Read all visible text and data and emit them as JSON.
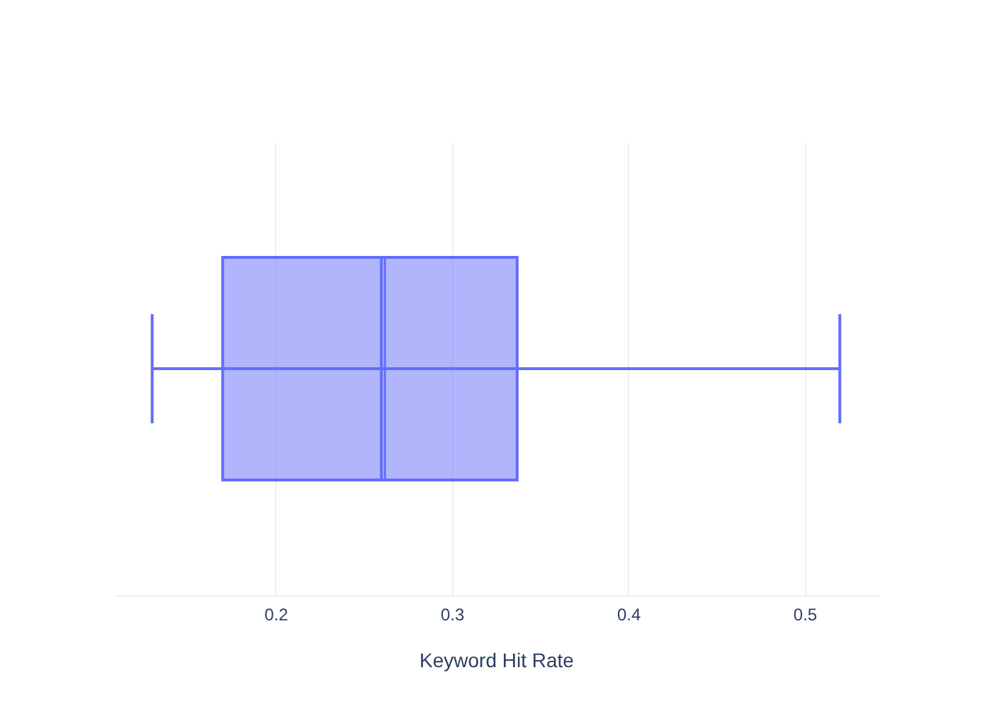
{
  "chart_data": {
    "type": "box",
    "orientation": "horizontal",
    "categories": [
      null
    ],
    "series": [
      {
        "color": "#636efa",
        "boxes": [
          {
            "low": 0.13,
            "q1": 0.17,
            "median": 0.26,
            "q3": 0.337,
            "high": 0.52,
            "mean": 0.262
          }
        ]
      }
    ],
    "xlabel": "Keyword Hit Rate",
    "xlim": [
      0.108,
      0.542
    ],
    "xticks": [
      0.2,
      0.3,
      0.4,
      0.5
    ],
    "grid": "x",
    "tick_labels": "x"
  }
}
